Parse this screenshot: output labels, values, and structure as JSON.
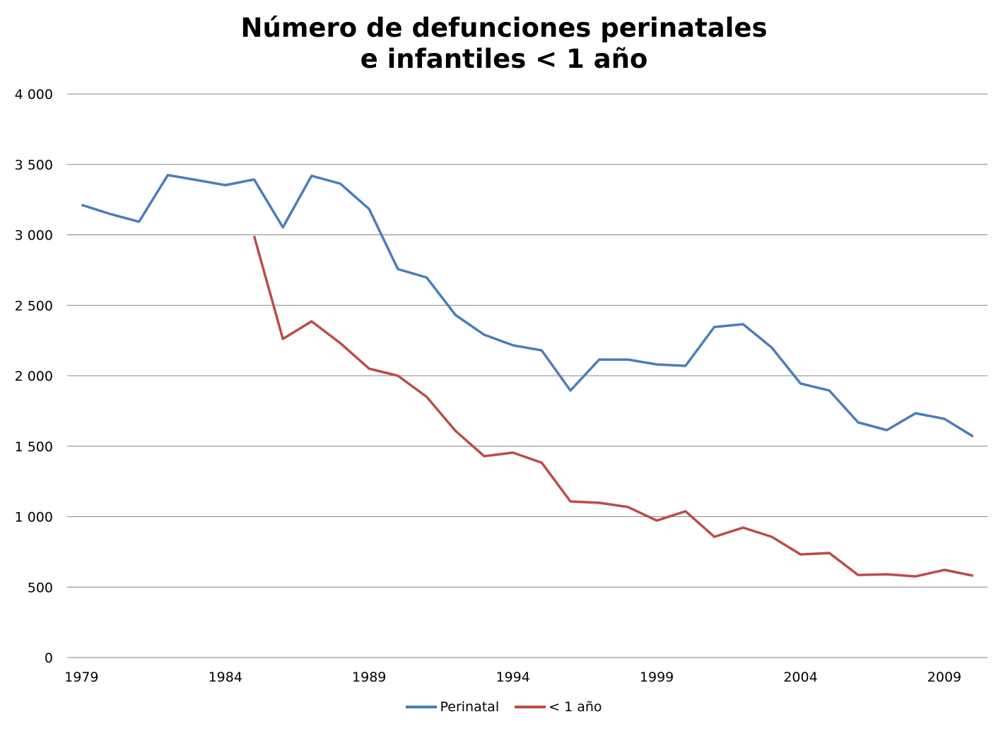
{
  "chart_data": {
    "type": "line",
    "title": [
      "Número de defunciones perinatales",
      "e  infantiles  < 1 año"
    ],
    "xlabel": "",
    "ylabel": "",
    "x": [
      1979,
      1980,
      1981,
      1982,
      1983,
      1984,
      1985,
      1986,
      1987,
      1988,
      1989,
      1990,
      1991,
      1992,
      1993,
      1994,
      1995,
      1996,
      1997,
      1998,
      1999,
      2000,
      2001,
      2002,
      2003,
      2004,
      2005,
      2006,
      2007,
      2008,
      2009,
      2010
    ],
    "xlim": [
      1978.5,
      2010.5
    ],
    "x_ticks": [
      1979,
      1984,
      1989,
      1994,
      1999,
      2004,
      2009
    ],
    "x_tick_labels": [
      "1979",
      "1984",
      "1989",
      "1994",
      "1999",
      "2004",
      "2009"
    ],
    "ylim": [
      0,
      4000
    ],
    "y_ticks": [
      0,
      500,
      1000,
      1500,
      2000,
      2500,
      3000,
      3500,
      4000
    ],
    "y_tick_labels": [
      "0",
      "500",
      "1 000",
      "1 500",
      "2 000",
      "2 500",
      "3 000",
      "3 500",
      "4 000"
    ],
    "grid": true,
    "legend_position": "bottom",
    "series": [
      {
        "name": "Perinatal",
        "color": "#4a7ebb",
        "values": [
          3213,
          3148,
          3093,
          3424,
          3389,
          3353,
          3393,
          3053,
          3419,
          3363,
          3183,
          2757,
          2697,
          2431,
          2291,
          2216,
          2180,
          1895,
          2115,
          2115,
          2080,
          2070,
          2346,
          2366,
          2200,
          1945,
          1895,
          1669,
          1614,
          1734,
          1694,
          1569
        ]
      },
      {
        "name": "< 1 año",
        "color": "#be4b48",
        "values": [
          null,
          null,
          null,
          null,
          null,
          null,
          2992,
          2261,
          2386,
          2231,
          2050,
          2000,
          1850,
          1609,
          1429,
          1454,
          1383,
          1108,
          1098,
          1068,
          972,
          1038,
          857,
          922,
          857,
          732,
          742,
          586,
          591,
          576,
          622,
          581
        ]
      }
    ]
  }
}
